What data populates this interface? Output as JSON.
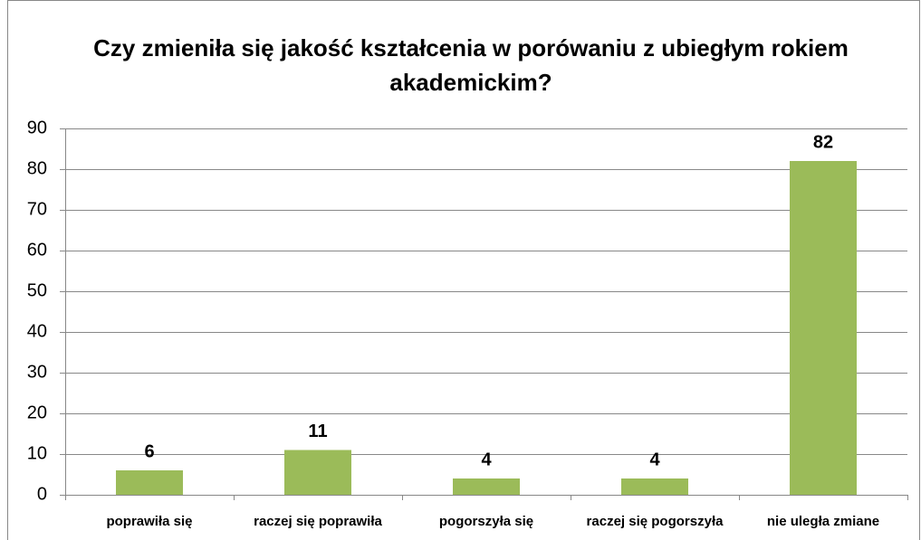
{
  "chart_data": {
    "type": "bar",
    "title": "Czy zmieniła się jakość kształcenia w porówaniu z ubiegłym rokiem akademickim?",
    "categories": [
      "poprawiła się",
      "raczej się poprawiła",
      "pogorszyła się",
      "raczej się pogorszyła",
      "nie uległa zmiane"
    ],
    "values": [
      6,
      11,
      4,
      4,
      82
    ],
    "color": "#9bbb59",
    "ylim": [
      0,
      90
    ],
    "yticks": [
      0,
      10,
      20,
      30,
      40,
      50,
      60,
      70,
      80,
      90
    ],
    "grid": true
  }
}
